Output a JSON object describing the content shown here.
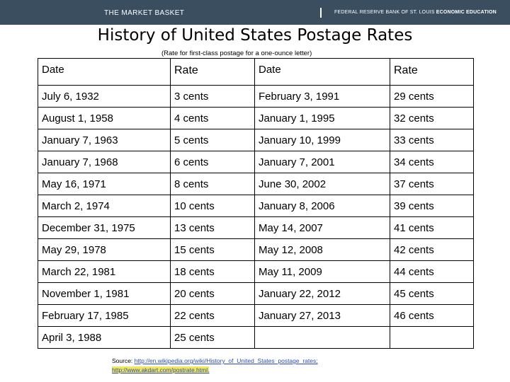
{
  "header": {
    "left_text": "THE MARKET BASKET",
    "right_text_prefix": "FEDERAL RESERVE BANK OF ST. LOUIS",
    "right_text_bold": "ECONOMIC EDUCATION",
    "bar_color": "#3a4e60"
  },
  "title": "History of United States Postage Rates",
  "subtitle": "(Rate for first-class postage for a one-ounce letter)",
  "table": {
    "headers": [
      "Date",
      "Rate",
      "Date",
      "Rate"
    ],
    "rows": [
      [
        "July 6, 1932",
        "3 cents",
        "February 3, 1991",
        "29 cents"
      ],
      [
        "August 1, 1958",
        "4 cents",
        "January 1, 1995",
        "32 cents"
      ],
      [
        "January 7, 1963",
        "5 cents",
        "January 10, 1999",
        "33 cents"
      ],
      [
        "January 7, 1968",
        "6 cents",
        "January 7, 2001",
        "34 cents"
      ],
      [
        "May 16, 1971",
        "8 cents",
        "June 30, 2002",
        "37 cents"
      ],
      [
        "March 2, 1974",
        "10 cents",
        "January 8, 2006",
        "39 cents"
      ],
      [
        "December 31, 1975",
        "13 cents",
        "May 14, 2007",
        "41 cents"
      ],
      [
        "May 29, 1978",
        "15 cents",
        "May 12, 2008",
        "42 cents"
      ],
      [
        "March 22, 1981",
        "18 cents",
        "May 11, 2009",
        "44 cents"
      ],
      [
        "November 1, 1981",
        "20 cents",
        "January 22, 2012",
        "45 cents"
      ],
      [
        "February 17, 1985",
        "22 cents",
        "January 27, 2013",
        "46 cents"
      ],
      [
        "April 3, 1988",
        "25 cents",
        "",
        ""
      ]
    ]
  },
  "source": {
    "label": "Source:",
    "link1": "http://en.wikipedia.org/wiki/History_of_United_States_postage_rates;",
    "link2": "http://www.akdart.com/postrate.html."
  }
}
